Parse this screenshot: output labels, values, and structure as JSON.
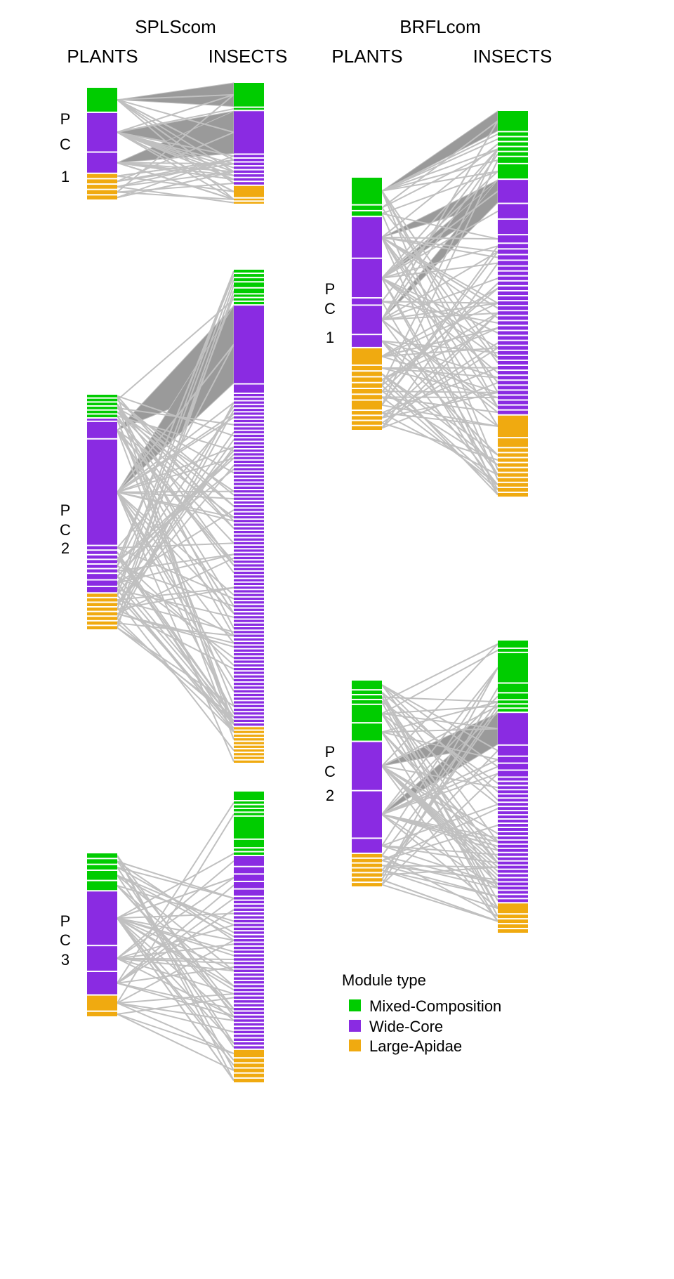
{
  "titles": {
    "left": "SPLScom",
    "right": "BRFLcom"
  },
  "column_labels": {
    "plants": "PLANTS",
    "insects": "INSECTS"
  },
  "colors": {
    "M": "#00CC00",
    "W": "#8A2BE2",
    "L": "#F0AA10",
    "link": "#C0C0C0",
    "fan": "#9A9A9A"
  },
  "legend": {
    "title": "Module type",
    "items": [
      {
        "key": "M",
        "label": "Mixed-Composition"
      },
      {
        "key": "W",
        "label": "Wide-Core"
      },
      {
        "key": "L",
        "label": "Large-Apidae"
      }
    ]
  },
  "panels": [
    {
      "id": "splscom-pc1",
      "community": "left",
      "label": [
        "P",
        "C",
        "1"
      ],
      "plants": [
        [
          "M",
          36,
          1
        ],
        [
          "W",
          58,
          1
        ],
        [
          "W",
          30,
          1
        ],
        [
          "L",
          6,
          5
        ]
      ],
      "insects": [
        [
          "M",
          38,
          1
        ],
        [
          "M",
          3,
          1
        ],
        [
          "W",
          68,
          1
        ],
        [
          "W",
          4,
          8
        ],
        [
          "L",
          18,
          1
        ],
        [
          "L",
          3,
          2
        ]
      ]
    },
    {
      "id": "splscom-pc2",
      "community": "left",
      "label": [
        "P",
        "C",
        "2"
      ],
      "plants": [
        [
          "M",
          4,
          6
        ],
        [
          "W",
          3,
          1
        ],
        [
          "W",
          25,
          1
        ],
        [
          "W",
          163,
          1
        ],
        [
          "W",
          5,
          6
        ],
        [
          "W",
          8,
          3
        ],
        [
          "L",
          5,
          8
        ]
      ],
      "insects": [
        [
          "M",
          5,
          3
        ],
        [
          "M",
          8,
          2
        ],
        [
          "M",
          4,
          3
        ],
        [
          "W",
          135,
          1
        ],
        [
          "W",
          14,
          1
        ],
        [
          "W",
          4,
          90
        ],
        [
          "L",
          4,
          10
        ]
      ]
    },
    {
      "id": "splscom-pc3",
      "community": "left",
      "label": [
        "P",
        "C",
        "3"
      ],
      "plants": [
        [
          "M",
          6,
          3
        ],
        [
          "M",
          12,
          2
        ],
        [
          "W",
          72,
          1
        ],
        [
          "W",
          33,
          1
        ],
        [
          "W",
          30,
          1
        ],
        [
          "L",
          20,
          1
        ],
        [
          "L",
          6,
          1
        ]
      ],
      "insects": [
        [
          "M",
          14,
          1
        ],
        [
          "M",
          4,
          4
        ],
        [
          "M",
          36,
          1
        ],
        [
          "M",
          12,
          1
        ],
        [
          "M",
          4,
          2
        ],
        [
          "W",
          16,
          1
        ],
        [
          "W",
          10,
          4
        ],
        [
          "W",
          4,
          40
        ],
        [
          "L",
          12,
          1
        ],
        [
          "L",
          6,
          5
        ]
      ]
    },
    {
      "id": "brflcom-pc1",
      "community": "right",
      "label": [
        "P",
        "C",
        "1"
      ],
      "plants": [
        [
          "M",
          36,
          1
        ],
        [
          "M",
          6,
          2
        ],
        [
          "W",
          55,
          1
        ],
        [
          "W",
          52,
          1
        ],
        [
          "W",
          8,
          1
        ],
        [
          "W",
          38,
          1
        ],
        [
          "W",
          16,
          1
        ],
        [
          "L",
          22,
          1
        ],
        [
          "L",
          6,
          6
        ],
        [
          "L",
          12,
          1
        ],
        [
          "L",
          5,
          4
        ]
      ],
      "insects": [
        [
          "M",
          28,
          1
        ],
        [
          "M",
          5,
          5
        ],
        [
          "M",
          8,
          1
        ],
        [
          "M",
          20,
          1
        ],
        [
          "W",
          32,
          1
        ],
        [
          "W",
          20,
          1
        ],
        [
          "W",
          20,
          1
        ],
        [
          "W",
          10,
          1
        ],
        [
          "W",
          6,
          4
        ],
        [
          "W",
          5,
          30
        ],
        [
          "L",
          30,
          1
        ],
        [
          "L",
          12,
          1
        ],
        [
          "L",
          5,
          10
        ]
      ]
    },
    {
      "id": "brflcom-pc2",
      "community": "right",
      "label": [
        "P",
        "C",
        "2"
      ],
      "plants": [
        [
          "M",
          10,
          1
        ],
        [
          "M",
          4,
          3
        ],
        [
          "M",
          20,
          1
        ],
        [
          "M",
          20,
          1
        ],
        [
          "W",
          56,
          1
        ],
        [
          "W",
          54,
          1
        ],
        [
          "W",
          16,
          1
        ],
        [
          "L",
          4,
          7
        ]
      ],
      "insects": [
        [
          "M",
          10,
          1
        ],
        [
          "M",
          4,
          1
        ],
        [
          "M",
          42,
          1
        ],
        [
          "M",
          12,
          1
        ],
        [
          "M",
          8,
          1
        ],
        [
          "M",
          4,
          3
        ],
        [
          "W",
          45,
          1
        ],
        [
          "W",
          14,
          1
        ],
        [
          "W",
          8,
          3
        ],
        [
          "W",
          4,
          30
        ],
        [
          "L",
          14,
          1
        ],
        [
          "L",
          5,
          4
        ]
      ]
    }
  ]
}
